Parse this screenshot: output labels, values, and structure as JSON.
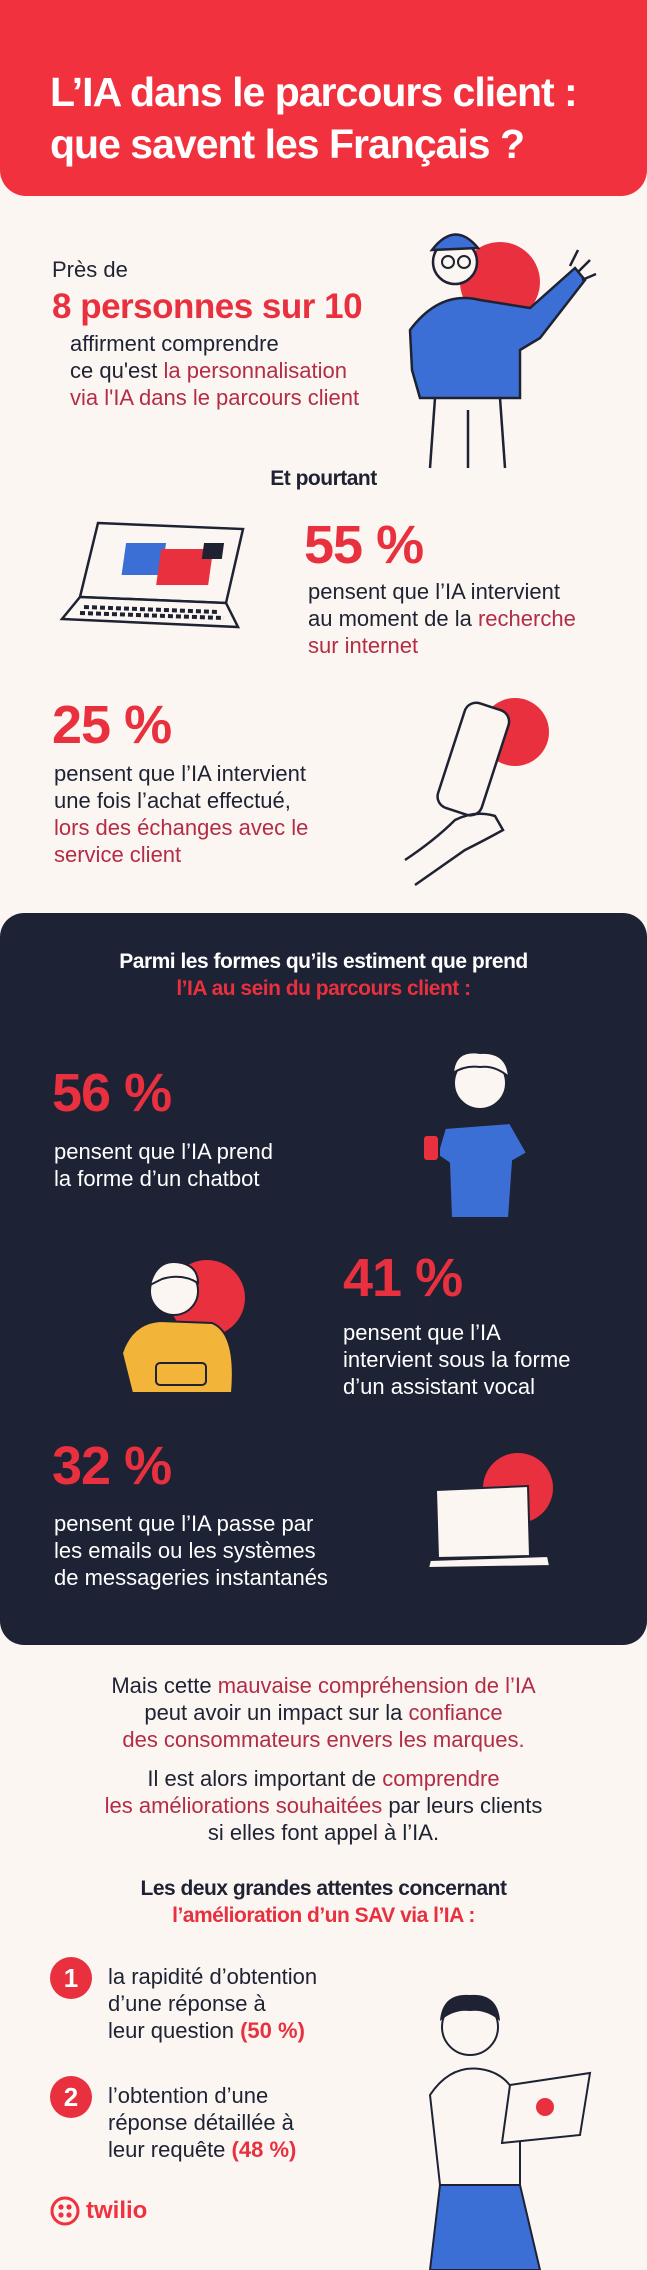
{
  "header": {
    "title_line1": "L’IA dans le parcours client :",
    "title_line2": "que savent les Français ?"
  },
  "intro": {
    "pre": "Près de",
    "stat": "8 personnes sur 10",
    "line1": "affirment comprendre",
    "line2_a": "ce qu'est ",
    "line2_b": "la personnalisation",
    "line3": "via l'IA dans le parcours client"
  },
  "et_pourtant": "Et pourtant",
  "stat55": {
    "value": "55 %",
    "line1": "pensent que l’IA intervient",
    "line2_a": "au moment de la ",
    "line2_b": "recherche",
    "line3": "sur internet"
  },
  "stat25": {
    "value": "25 %",
    "line1": "pensent que l’IA intervient",
    "line2": "une fois l’achat effectué,",
    "line3": "lors des échanges avec le",
    "line4": "service client"
  },
  "dark_section": {
    "heading1": "Parmi les formes qu’ils estiment que prend",
    "heading2": "l’IA au sein du parcours client :",
    "stat56": {
      "value": "56 %",
      "line1": "pensent que l’IA prend",
      "line2": "la forme d’un chatbot"
    },
    "stat41": {
      "value": "41 %",
      "line1": "pensent que l’IA",
      "line2": "intervient sous la forme",
      "line3": "d’un assistant vocal"
    },
    "stat32": {
      "value": "32 %",
      "line1": "pensent que l’IA passe par",
      "line2": "les emails ou les systèmes",
      "line3": "de messageries instantanés"
    }
  },
  "mais": {
    "l1_a": "Mais cette ",
    "l1_b": "mauvaise compréhension de l’IA",
    "l2_a": "peut avoir un impact sur la ",
    "l2_b": "confiance",
    "l3": "des consommateurs envers les marques."
  },
  "important": {
    "l1_a": "Il est alors important de ",
    "l1_b": "comprendre",
    "l2_a": "les améliorations souhaitées",
    "l2_b": " par leurs clients",
    "l3": "si elles font appel à l’IA."
  },
  "attentes": {
    "heading1": "Les deux grandes attentes concernant",
    "heading2": "l’amélioration d’un SAV via l’IA :",
    "items": [
      {
        "num": "1",
        "l1": "la rapidité d’obtention",
        "l2": "d’une réponse à",
        "l3": "leur question ",
        "pct": "(50 %)"
      },
      {
        "num": "2",
        "l1": "l’obtention d’une",
        "l2": "réponse détaillée à",
        "l3": "leur requête ",
        "pct": "(48 %)"
      }
    ]
  },
  "logo": {
    "text": "twilio"
  },
  "colors": {
    "brand_red": "#f2313f",
    "dark_navy": "#1d2235",
    "maroon": "#b42c46",
    "cream": "#fbf6f1"
  }
}
